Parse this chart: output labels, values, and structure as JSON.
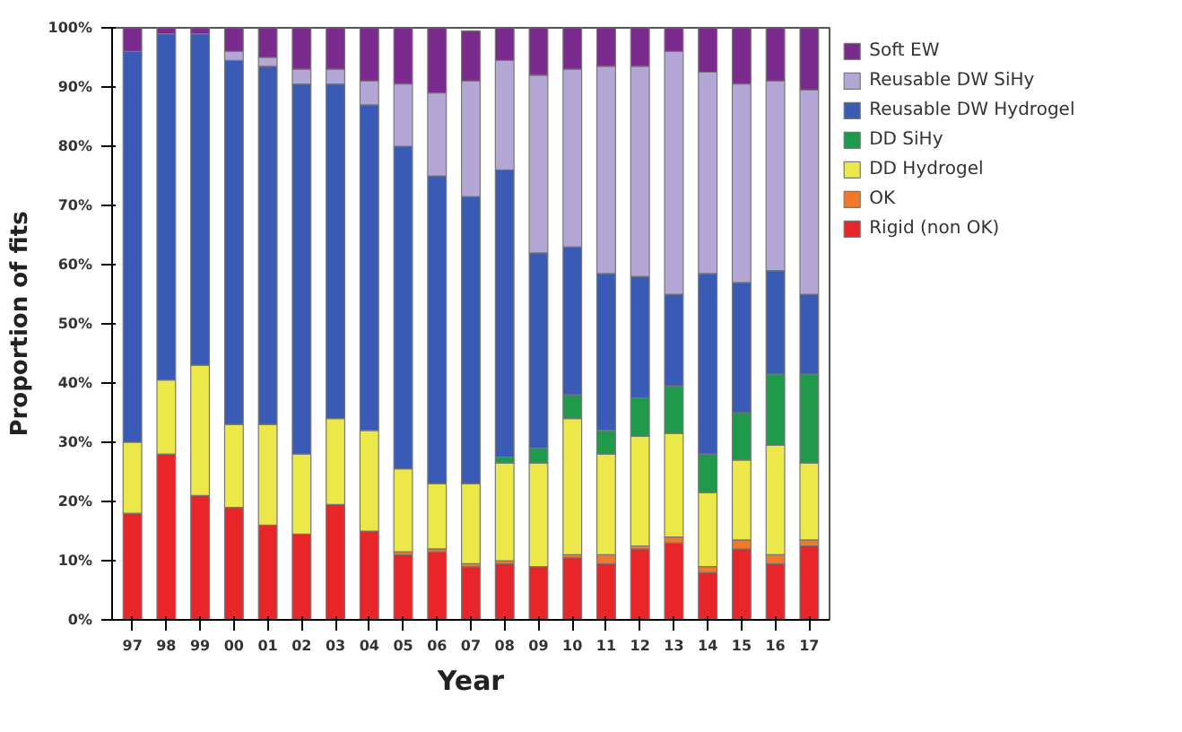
{
  "chart_data": {
    "type": "bar",
    "stacked": true,
    "xlabel": "Year",
    "ylabel": "Proportion of fits",
    "categories": [
      "97",
      "98",
      "99",
      "00",
      "01",
      "02",
      "03",
      "04",
      "05",
      "06",
      "07",
      "08",
      "09",
      "10",
      "11",
      "12",
      "13",
      "14",
      "15",
      "16",
      "17"
    ],
    "ylim": [
      0,
      100
    ],
    "yticks": [
      {
        "value": 0,
        "label": "0%"
      },
      {
        "value": 10,
        "label": "10%"
      },
      {
        "value": 20,
        "label": "20%"
      },
      {
        "value": 30,
        "label": "30%"
      },
      {
        "value": 40,
        "label": "40%"
      },
      {
        "value": 50,
        "label": "50%"
      },
      {
        "value": 60,
        "label": "60%"
      },
      {
        "value": 70,
        "label": "70%"
      },
      {
        "value": 80,
        "label": "80%"
      },
      {
        "value": 90,
        "label": "90%"
      },
      {
        "value": 100,
        "label": "100%"
      }
    ],
    "grid": false,
    "legend": "right",
    "series": [
      {
        "name": "Rigid (non OK)",
        "color": "#e8262a",
        "values": [
          18,
          28,
          21,
          19,
          16,
          14.5,
          19.5,
          15,
          11,
          11.5,
          9,
          9.5,
          9,
          10.5,
          9.5,
          12,
          13,
          8,
          12,
          9.5,
          12.5
        ]
      },
      {
        "name": "OK",
        "color": "#f07a2a",
        "values": [
          0,
          0,
          0,
          0,
          0,
          0,
          0,
          0,
          0.5,
          0.5,
          0.5,
          0.5,
          0,
          0.5,
          1.5,
          0.5,
          1,
          1,
          1.5,
          1.5,
          1
        ]
      },
      {
        "name": "DD Hydrogel",
        "color": "#ece84a",
        "values": [
          12,
          12.5,
          22,
          14,
          17,
          13.5,
          14.5,
          17,
          14,
          11,
          13.5,
          16.5,
          17.5,
          23,
          17,
          18.5,
          17.5,
          12.5,
          13.5,
          18.5,
          13
        ]
      },
      {
        "name": "DD SiHy",
        "color": "#1f9a4a",
        "values": [
          0,
          0,
          0,
          0,
          0,
          0,
          0,
          0,
          0,
          0,
          0,
          1,
          2.5,
          4,
          4,
          6.5,
          8,
          6.5,
          8,
          12,
          15
        ]
      },
      {
        "name": "Reusable DW Hydrogel",
        "color": "#3a5bb5",
        "values": [
          66,
          58.5,
          56,
          61.5,
          60.5,
          62.5,
          56.5,
          55,
          54.5,
          52,
          48.5,
          48.5,
          33,
          25,
          26.5,
          20.5,
          15.5,
          30.5,
          22,
          17.5,
          13.5
        ]
      },
      {
        "name": "Reusable DW SiHy",
        "color": "#b4a7d6",
        "values": [
          0,
          0,
          0,
          1.5,
          1.5,
          2.5,
          2.5,
          4,
          10.5,
          14,
          19.5,
          18.5,
          30,
          30,
          35,
          35.5,
          41,
          34,
          33.5,
          32,
          34.5
        ]
      },
      {
        "name": "Soft EW",
        "color": "#7b2a8e",
        "values": [
          4,
          1,
          1,
          4,
          5,
          7,
          7,
          9,
          9.5,
          11,
          8.5,
          5.5,
          8,
          7,
          6.5,
          6.5,
          4,
          7.5,
          9.5,
          9,
          10.5
        ]
      }
    ]
  }
}
